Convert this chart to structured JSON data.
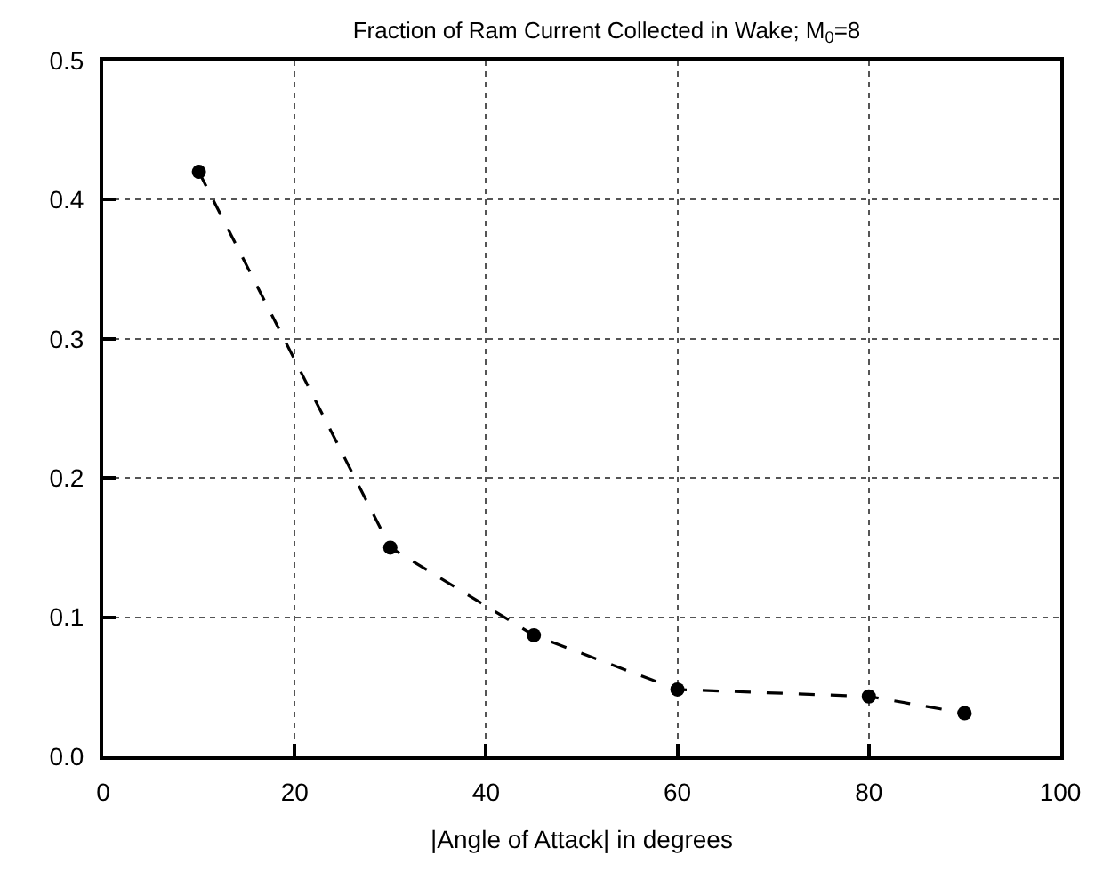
{
  "chart_data": {
    "type": "line",
    "title": "Fraction of Ram Current Collected in Wake; M$_{0}$=8",
    "xlabel": "|Angle of Attack| in degrees",
    "x": [
      10,
      30,
      45,
      60,
      80,
      90
    ],
    "series": [
      {
        "color": "#000000",
        "values": [
          0.42,
          0.15,
          0.087,
          0.048,
          0.043,
          0.031
        ]
      }
    ],
    "xlim": [
      0,
      100
    ],
    "xticks": [
      0,
      20,
      40,
      60,
      80,
      100
    ],
    "ylim": [
      0,
      0.5
    ],
    "yticks": [
      {
        "value": 0,
        "label": "0.0"
      },
      {
        "value": 0.1,
        "label": "0.1"
      },
      {
        "value": 0.2,
        "label": "0.2"
      },
      {
        "value": 0.3,
        "label": "0.3"
      },
      {
        "value": 0.4,
        "label": "0.4"
      },
      {
        "value": 0.5,
        "label": "0.5"
      }
    ],
    "grid": true,
    "marker": "circle",
    "line_style": "dashed"
  }
}
